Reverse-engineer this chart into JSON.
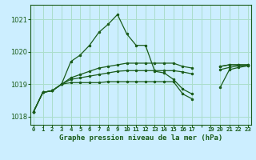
{
  "title": "Graphe pression niveau de la mer (hPa)",
  "background_color": "#cceeff",
  "grid_color": "#aaddcc",
  "line_color": "#1a5c1a",
  "ylim": [
    1017.75,
    1021.45
  ],
  "xlim": [
    -0.3,
    23.3
  ],
  "yticks": [
    1018,
    1019,
    1020,
    1021
  ],
  "xtick_labels": [
    "0",
    "1",
    "2",
    "3",
    "4",
    "5",
    "6",
    "7",
    "8",
    "9",
    "10",
    "11",
    "12",
    "13",
    "14",
    "15",
    "16",
    "17",
    "",
    "19",
    "20",
    "21",
    "22",
    "23"
  ],
  "series": [
    [
      1018.15,
      1018.75,
      1018.8,
      1019.0,
      1019.7,
      1019.9,
      1020.2,
      1020.6,
      1020.85,
      1021.15,
      1020.55,
      1020.2,
      1020.2,
      1019.4,
      1019.35,
      1019.15,
      1018.85,
      1018.7,
      null,
      null,
      1019.55,
      1019.6,
      1019.6,
      1019.6
    ],
    [
      1018.15,
      1018.75,
      1018.8,
      1019.0,
      1019.2,
      1019.3,
      1019.4,
      1019.5,
      1019.55,
      1019.6,
      1019.65,
      1019.65,
      1019.65,
      1019.65,
      1019.65,
      1019.65,
      1019.55,
      1019.5,
      null,
      null,
      1019.55,
      1019.6,
      1019.6,
      1019.6
    ],
    [
      1018.15,
      1018.75,
      1018.8,
      1019.0,
      1019.15,
      1019.2,
      1019.25,
      1019.3,
      1019.35,
      1019.4,
      1019.42,
      1019.42,
      1019.42,
      1019.42,
      1019.42,
      1019.42,
      1019.38,
      1019.32,
      null,
      null,
      1019.45,
      1019.52,
      1019.57,
      1019.57
    ],
    [
      1018.15,
      1018.75,
      1018.8,
      1019.0,
      1019.05,
      1019.05,
      1019.05,
      1019.05,
      1019.08,
      1019.08,
      1019.08,
      1019.08,
      1019.08,
      1019.08,
      1019.08,
      1019.08,
      1018.7,
      1018.55,
      null,
      null,
      1018.9,
      1019.45,
      1019.52,
      1019.57
    ]
  ]
}
